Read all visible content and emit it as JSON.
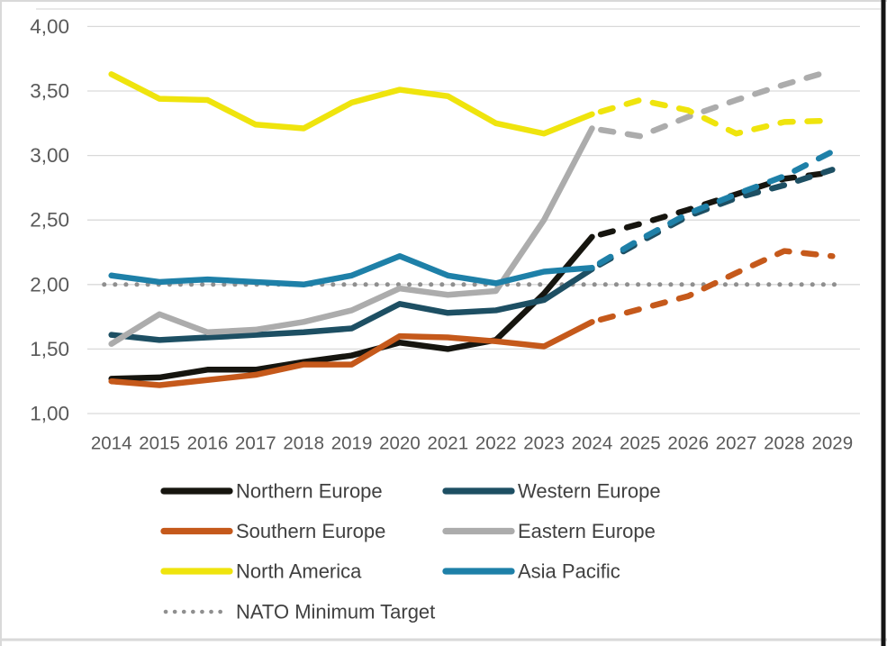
{
  "chart_data": {
    "type": "line",
    "title": "",
    "xlabel": "",
    "ylabel": "",
    "x": [
      "2014",
      "2015",
      "2016",
      "2017",
      "2018",
      "2019",
      "2020",
      "2021",
      "2022",
      "2023",
      "2024",
      "2025",
      "2026",
      "2027",
      "2028",
      "2029"
    ],
    "ylim": [
      1.0,
      4.0
    ],
    "grid": true,
    "legend_position": "bottom",
    "forecast_start_index": 10,
    "forecast_style": "dashed",
    "yticks": [
      {
        "value": 1.0,
        "label": "1,00"
      },
      {
        "value": 1.5,
        "label": "1,50"
      },
      {
        "value": 2.0,
        "label": "2,00"
      },
      {
        "value": 2.5,
        "label": "2,50"
      },
      {
        "value": 3.0,
        "label": "3,00"
      },
      {
        "value": 3.5,
        "label": "3,50"
      },
      {
        "value": 4.0,
        "label": "4,00"
      }
    ],
    "series": [
      {
        "name": "Northern Europe",
        "color": "#16150F",
        "style": "solid_then_dashed",
        "values": [
          1.27,
          1.28,
          1.34,
          1.34,
          1.4,
          1.45,
          1.55,
          1.5,
          1.57,
          1.93,
          2.37,
          2.47,
          2.58,
          2.7,
          2.82,
          2.87
        ]
      },
      {
        "name": "Western Europe",
        "color": "#1D4F63",
        "style": "solid_then_dashed",
        "values": [
          1.61,
          1.57,
          1.59,
          1.61,
          1.63,
          1.66,
          1.85,
          1.78,
          1.8,
          1.88,
          2.12,
          2.33,
          2.53,
          2.67,
          2.77,
          2.89
        ]
      },
      {
        "name": "Southern Europe",
        "color": "#C5591B",
        "style": "solid_then_dashed",
        "values": [
          1.25,
          1.22,
          1.26,
          1.3,
          1.38,
          1.38,
          1.6,
          1.59,
          1.56,
          1.52,
          1.71,
          1.81,
          1.91,
          2.09,
          2.26,
          2.22
        ]
      },
      {
        "name": "Eastern Europe",
        "color": "#ACACAC",
        "style": "solid_then_dashed",
        "values": [
          1.54,
          1.77,
          1.63,
          1.65,
          1.71,
          1.8,
          1.97,
          1.92,
          1.95,
          2.5,
          3.21,
          3.15,
          3.3,
          3.43,
          3.55,
          3.66
        ]
      },
      {
        "name": "North America",
        "color": "#EFE40D",
        "style": "solid_then_dashed",
        "values": [
          3.63,
          3.44,
          3.43,
          3.24,
          3.21,
          3.41,
          3.51,
          3.46,
          3.25,
          3.17,
          3.32,
          3.43,
          3.35,
          3.17,
          3.26,
          3.27
        ]
      },
      {
        "name": "Asia Pacific",
        "color": "#1E80A8",
        "style": "solid_then_dashed",
        "values": [
          2.07,
          2.02,
          2.04,
          2.02,
          2.0,
          2.07,
          2.22,
          2.07,
          2.01,
          2.1,
          2.13,
          2.35,
          2.55,
          2.7,
          2.84,
          3.03
        ]
      },
      {
        "name": "NATO Minimum Target",
        "color": "#8F8F8F",
        "style": "dotted",
        "values": [
          2.0,
          2.0,
          2.0,
          2.0,
          2.0,
          2.0,
          2.0,
          2.0,
          2.0,
          2.0,
          2.0,
          2.0,
          2.0,
          2.0,
          2.0,
          2.0
        ]
      }
    ],
    "legend_grid": [
      [
        "Northern Europe",
        "Western Europe"
      ],
      [
        "Southern Europe",
        "Eastern Europe"
      ],
      [
        "North America",
        "Asia Pacific"
      ],
      [
        "NATO Minimum Target"
      ]
    ]
  },
  "style": {
    "background": "#FFFFFF",
    "gridline_color": "#D9D9D9",
    "axis_label_color": "#595959",
    "legend_text_color": "#404040",
    "frame_light_color": "#D9D9D9",
    "frame_right_color": "#151515"
  }
}
